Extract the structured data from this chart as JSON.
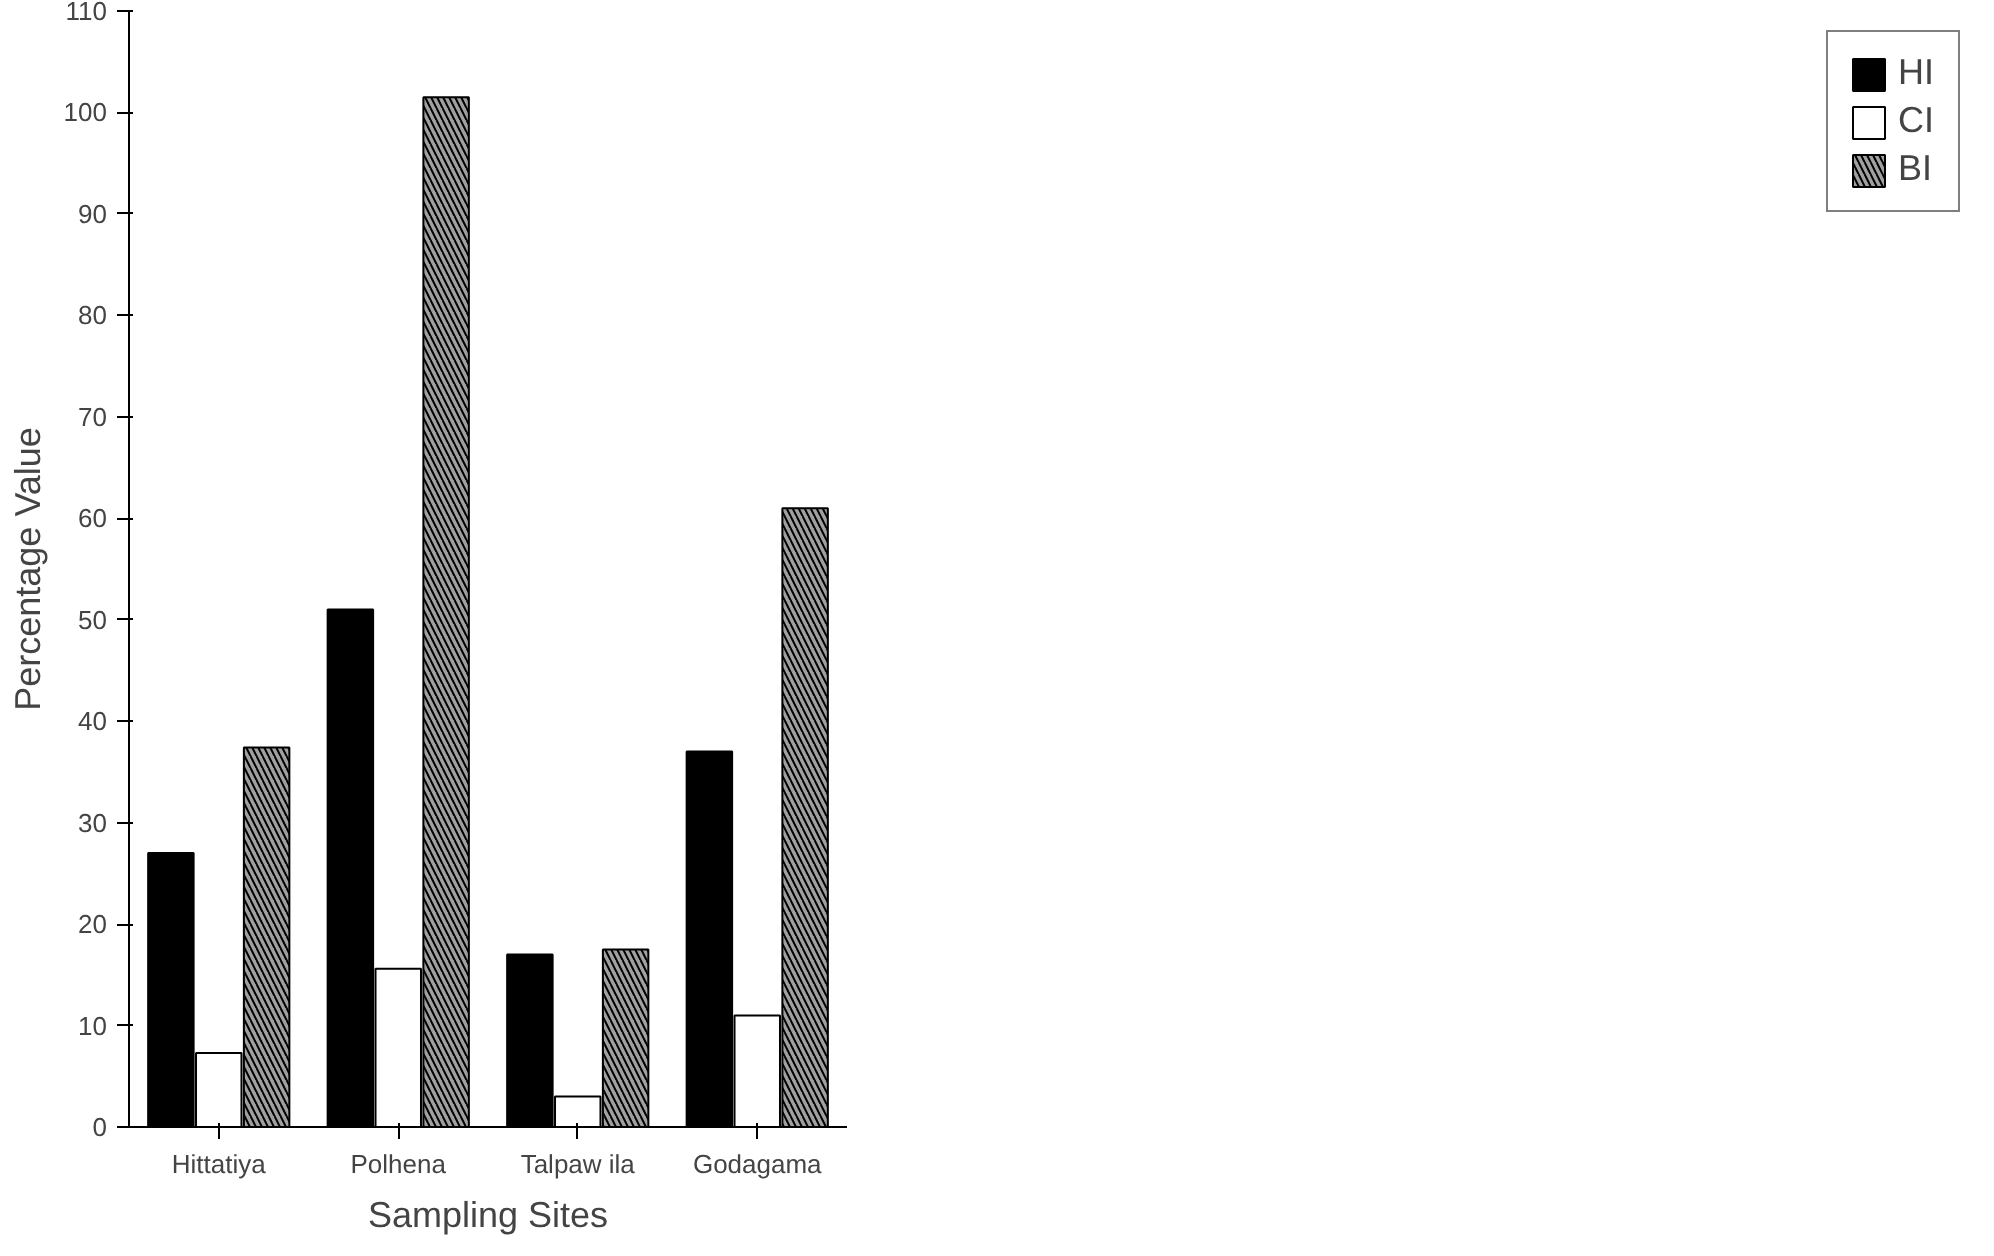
{
  "chart_data": {
    "type": "bar",
    "xlabel": "Sampling Sites",
    "ylabel": "Percentage Value",
    "categories": [
      "Hittatiya",
      "Polhena",
      "Talpaw ila",
      "Godagama"
    ],
    "series": [
      {
        "name": "HI",
        "color": "#000000",
        "values": [
          27,
          51,
          17,
          37
        ]
      },
      {
        "name": "CI",
        "color": "#ffffff",
        "values": [
          7.3,
          15.6,
          3,
          11
        ]
      },
      {
        "name": "BI",
        "color": "#a0a0a0",
        "values": [
          37.4,
          101.5,
          17.5,
          61
        ]
      }
    ],
    "ylim": [
      0,
      110
    ],
    "yticks": [
      0,
      10,
      20,
      30,
      40,
      50,
      60,
      70,
      80,
      90,
      100,
      110
    ],
    "grid": false,
    "legend": "top right"
  }
}
